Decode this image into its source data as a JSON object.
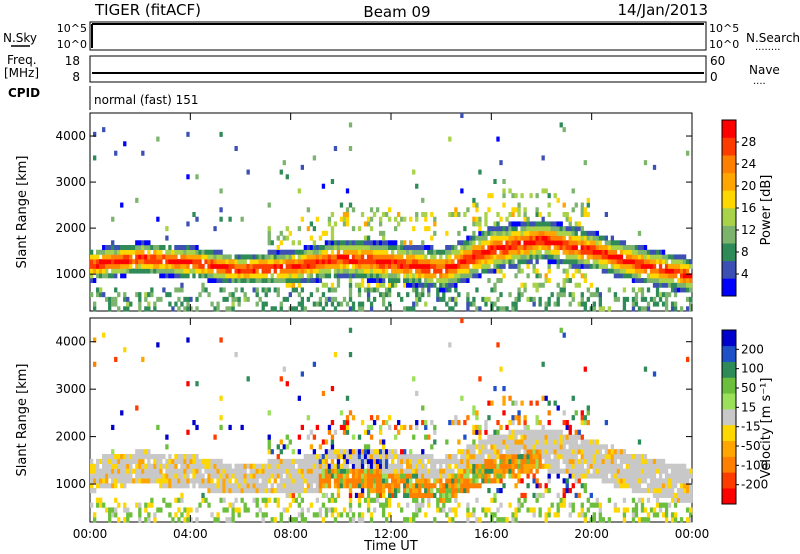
{
  "header": {
    "radar": "TIGER (fitACF)",
    "beam": "Beam 09",
    "date": "14/Jan/2013"
  },
  "status_panels": {
    "nsky": {
      "label": "N.Sky",
      "ticks": [
        "10^5",
        "10^0"
      ],
      "right_label": "N.Search",
      "right_ticks": [
        "10^5",
        "10^0"
      ]
    },
    "freq": {
      "label_line1": "Freq.",
      "label_line2": "[MHz]",
      "ticks": [
        "18",
        "8"
      ],
      "right_label": "Nave",
      "right_ticks": [
        "60",
        "0"
      ]
    },
    "cpid": {
      "label": "CPID",
      "value": "normal (fast) 151"
    }
  },
  "chart_data": [
    {
      "type": "heatmap",
      "name": "power",
      "ylabel": "Slant Range [km]",
      "ylim": [
        200,
        4500
      ],
      "yticks": [
        1000,
        2000,
        3000,
        4000
      ],
      "ytick_labels": [
        "1000",
        "2000",
        "3000",
        "4000"
      ],
      "xlim": [
        0,
        24
      ],
      "colorbar": {
        "label": "Power [dB]",
        "ticks": [
          "4",
          "8",
          "12",
          "16",
          "20",
          "24",
          "28"
        ],
        "colors": [
          "#0000ff",
          "#3c50b4",
          "#2e8b57",
          "#7cb46e",
          "#a8d24a",
          "#ffd700",
          "#ffa500",
          "#ff7f00",
          "#ff3c00",
          "#ff0000"
        ]
      },
      "bands": [
        {
          "t": 0,
          "center": 1150,
          "width": 350
        },
        {
          "t": 2,
          "center": 1300,
          "width": 350
        },
        {
          "t": 4,
          "center": 1200,
          "width": 350
        },
        {
          "t": 6,
          "center": 1050,
          "width": 320
        },
        {
          "t": 8,
          "center": 1100,
          "width": 380
        },
        {
          "t": 10,
          "center": 1300,
          "width": 420
        },
        {
          "t": 12,
          "center": 1200,
          "width": 450
        },
        {
          "t": 14,
          "center": 1050,
          "width": 450
        },
        {
          "t": 16,
          "center": 1500,
          "width": 500
        },
        {
          "t": 18,
          "center": 1700,
          "width": 450
        },
        {
          "t": 20,
          "center": 1450,
          "width": 420
        },
        {
          "t": 22,
          "center": 1150,
          "width": 400
        },
        {
          "t": 24,
          "center": 900,
          "width": 380
        }
      ]
    },
    {
      "type": "heatmap",
      "name": "velocity",
      "ylabel": "Slant Range [km]",
      "ylim": [
        200,
        4500
      ],
      "yticks": [
        1000,
        2000,
        3000,
        4000
      ],
      "ytick_labels": [
        "1000",
        "2000",
        "3000",
        "4000"
      ],
      "xlim": [
        0,
        24
      ],
      "xlabel": "Time UT",
      "xtick_labels": [
        "00:00",
        "04:00",
        "08:00",
        "12:00",
        "16:00",
        "20:00",
        "00:00"
      ],
      "colorbar": {
        "label": "Velocity [m s⁻¹]",
        "ticks": [
          "200",
          "100",
          "50",
          "15",
          "-15",
          "-50",
          "-100",
          "-200"
        ],
        "colors": [
          "#0000cd",
          "#1e50c8",
          "#2e8b57",
          "#6cbf3c",
          "#9be05a",
          "#c8c8c8",
          "#ffd700",
          "#ffa500",
          "#ff7f00",
          "#ff3c00",
          "#ff0000"
        ]
      }
    }
  ]
}
